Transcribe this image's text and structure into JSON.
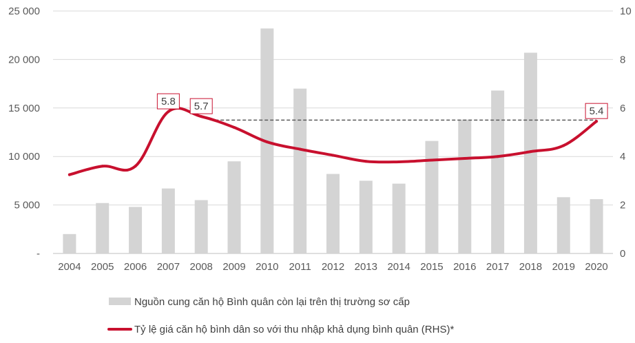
{
  "chart_data": {
    "type": "bar",
    "categories": [
      "2004",
      "2005",
      "2006",
      "2007",
      "2008",
      "2009",
      "2010",
      "2011",
      "2012",
      "2013",
      "2014",
      "2015",
      "2016",
      "2017",
      "2018",
      "2019",
      "2020"
    ],
    "series": [
      {
        "name": "Nguồn cung căn hộ Bình quân còn lại trên thị trường sơ cấp",
        "type": "bar",
        "axis": "left",
        "color": "#d4d4d4",
        "values": [
          2000,
          5200,
          4800,
          6700,
          5500,
          9500,
          23200,
          17000,
          8200,
          7500,
          7200,
          11600,
          13800,
          16800,
          20700,
          5800,
          5600
        ]
      },
      {
        "name": "Tỷ lệ giá căn hộ bình dân so với thu nhập khả dụng bình quân (RHS)*",
        "type": "line",
        "axis": "right",
        "color": "#c8102e",
        "values": [
          3.25,
          3.6,
          3.6,
          5.85,
          5.65,
          5.2,
          4.6,
          4.3,
          4.05,
          3.8,
          3.78,
          3.85,
          3.92,
          4.0,
          4.2,
          4.45,
          5.45
        ]
      }
    ],
    "data_labels": [
      {
        "index": 3,
        "text": "5.8"
      },
      {
        "index": 4,
        "text": "5.7"
      },
      {
        "index": 16,
        "text": "5.4"
      }
    ],
    "reference_line": {
      "axis": "right",
      "value": 5.5,
      "from_index": 4,
      "to_index": 16,
      "style": "dashed",
      "color": "#595959"
    },
    "y_left": {
      "min": 0,
      "max": 25000,
      "ticks": [
        0,
        5000,
        10000,
        15000,
        20000,
        25000
      ],
      "tick_labels": [
        "-",
        "5 000",
        "10 000",
        "15 000",
        "20 000",
        "25 000"
      ]
    },
    "y_right": {
      "min": 0,
      "max": 10,
      "ticks": [
        0,
        2,
        4,
        6,
        8,
        10
      ],
      "tick_labels": [
        "0",
        "2",
        "4",
        "6",
        "8",
        "10"
      ]
    },
    "grid": true,
    "legend_position": "bottom"
  }
}
